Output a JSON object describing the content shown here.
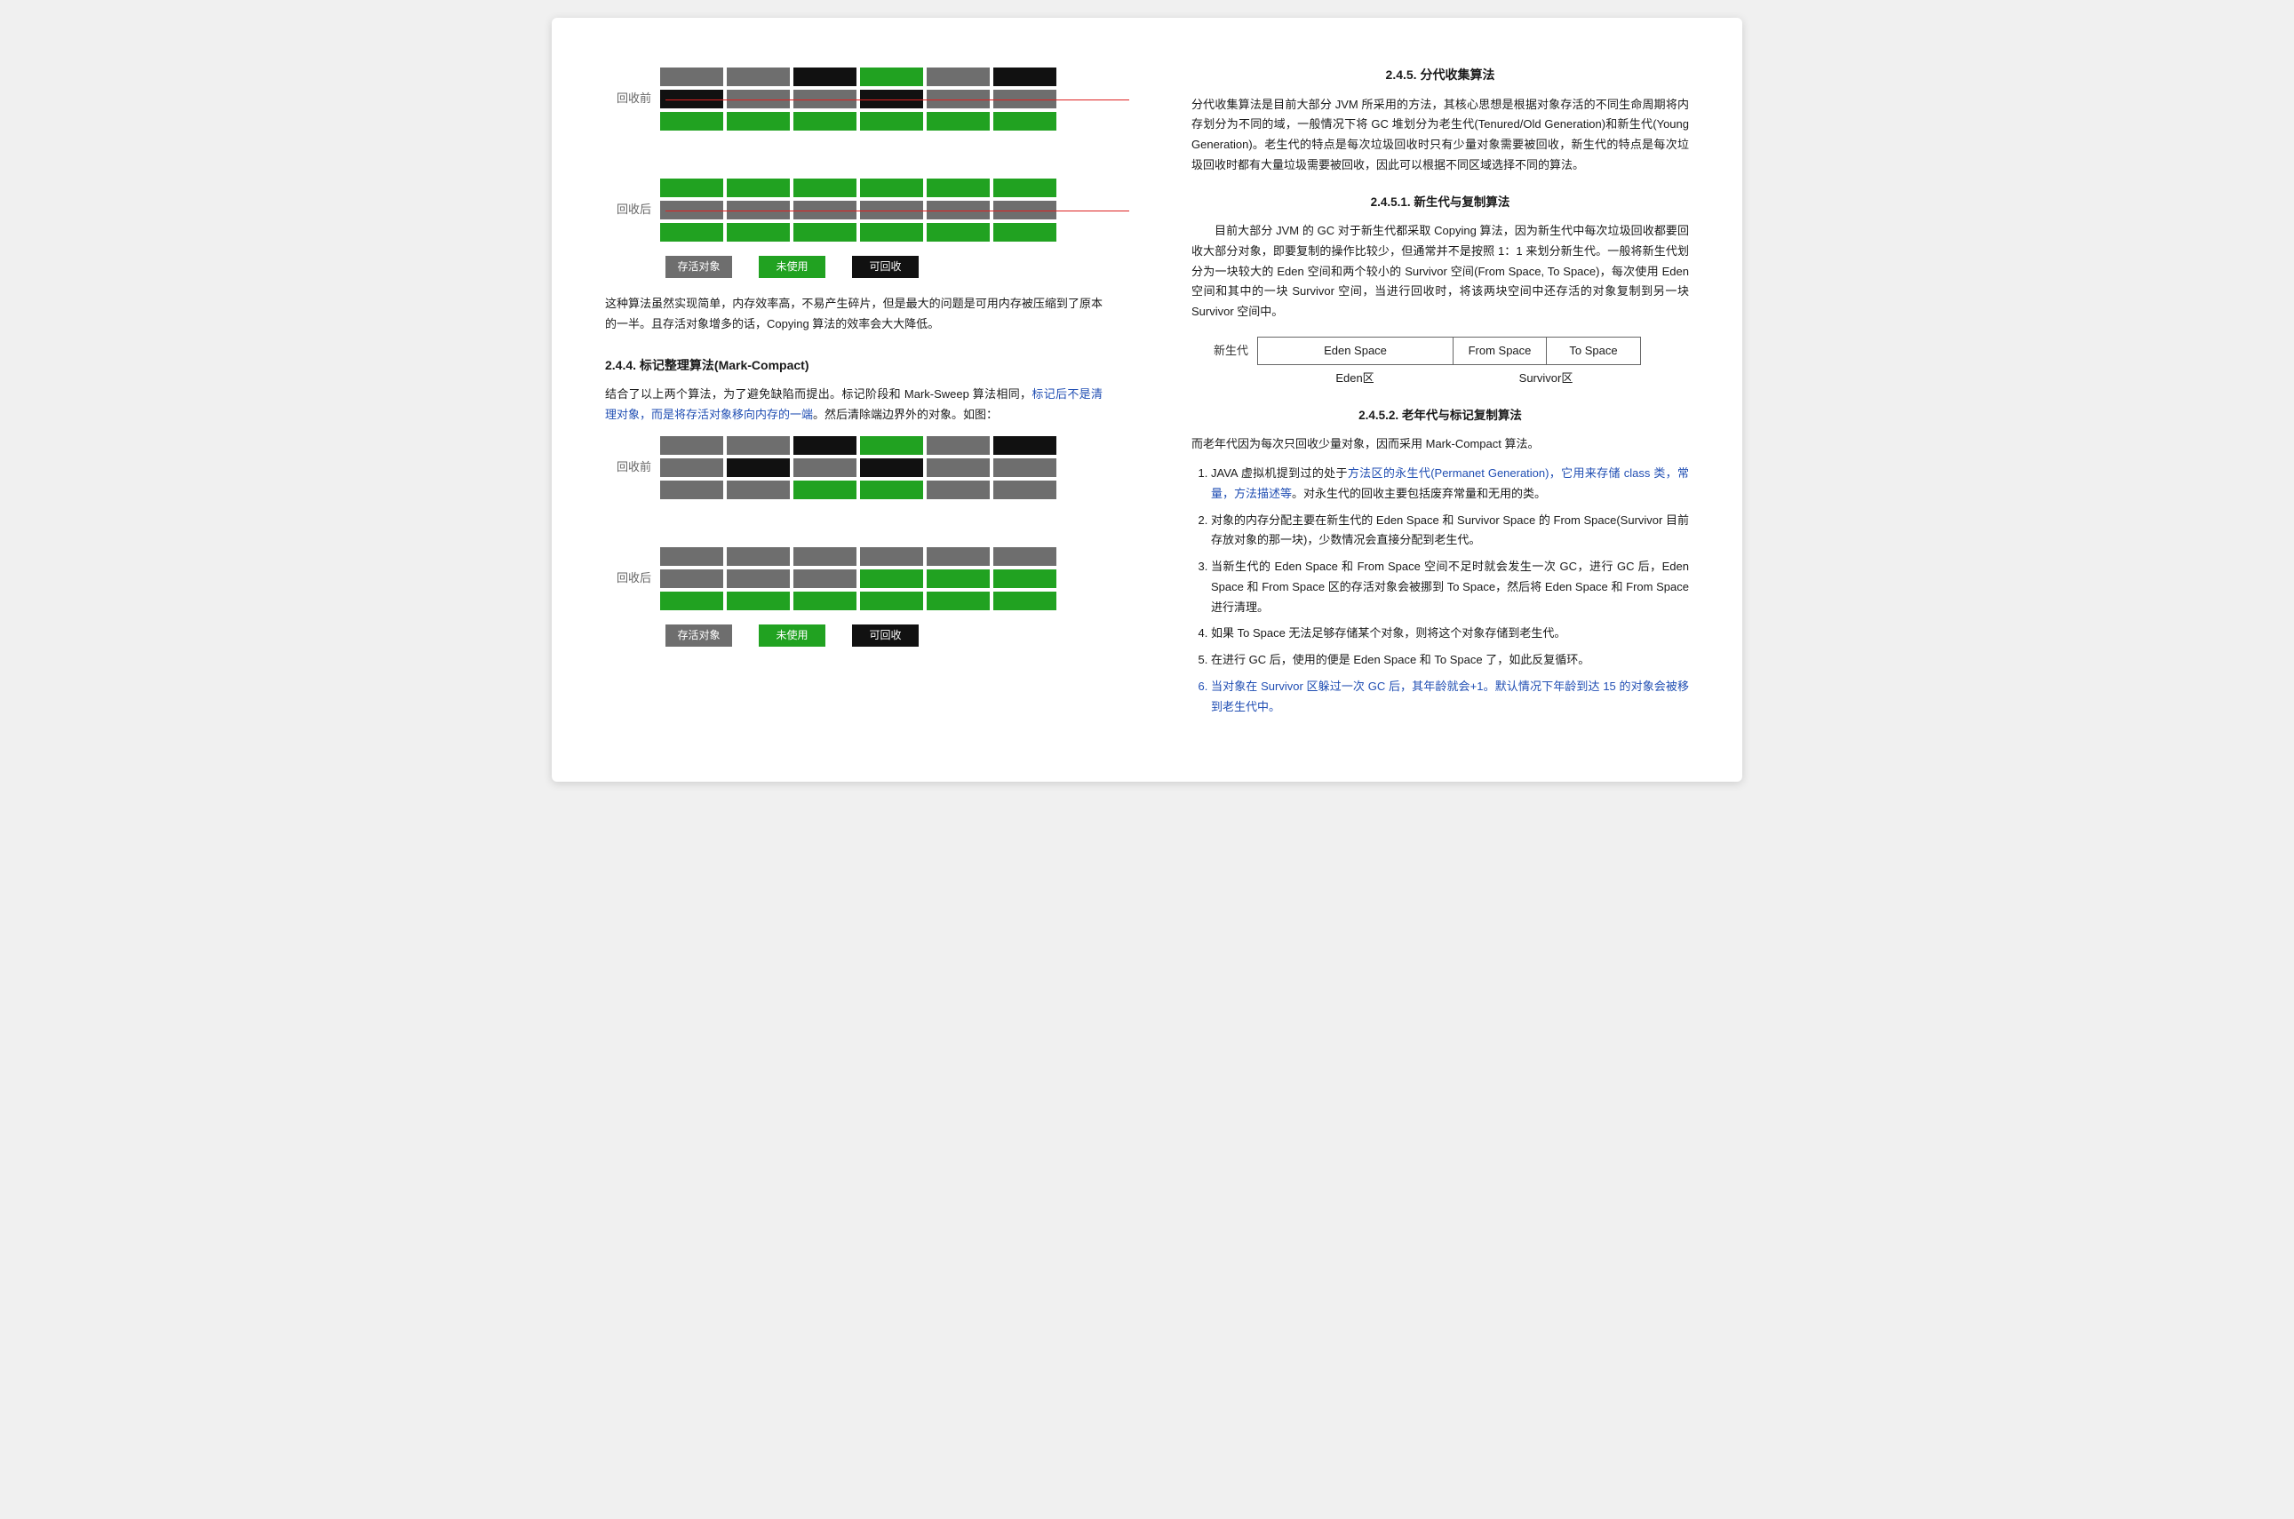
{
  "colors": {
    "grey": "#6e6e6e",
    "green": "#21a221",
    "black": "#111111",
    "link": "#204eb3",
    "redline": "#d22222",
    "page_bg": "#ffffff"
  },
  "left": {
    "diagram1": {
      "label_before": "回收前",
      "label_after": "回收后",
      "redline": true,
      "rows_before": [
        [
          "grey",
          "grey",
          "black",
          "green",
          "grey",
          "black"
        ],
        [
          "black",
          "grey",
          "grey",
          "black",
          "grey",
          "grey"
        ],
        [
          "green",
          "green",
          "green",
          "green",
          "green",
          "green"
        ]
      ],
      "rows_after": [
        [
          "green",
          "green",
          "green",
          "green",
          "green",
          "green"
        ],
        [
          "grey",
          "grey",
          "grey",
          "grey",
          "grey",
          "grey"
        ],
        [
          "green",
          "green",
          "green",
          "green",
          "green",
          "green"
        ]
      ],
      "legend": {
        "grey": "存活对象",
        "green": "未使用",
        "black": "可回收"
      }
    },
    "para1": "这种算法虽然实现简单，内存效率高，不易产生碎片，但是最大的问题是可用内存被压缩到了原本的一半。且存活对象增多的话，Copying 算法的效率会大大降低。",
    "heading_244": "2.4.4.  标记整理算法(Mark-Compact)",
    "para2_a": "结合了以上两个算法，为了避免缺陷而提出。标记阶段和 Mark-Sweep 算法相同，",
    "para2_b": "标记后不是清理对象，而是将存活对象移向内存的一端",
    "para2_c": "。然后清除端边界外的对象。如图：",
    "diagram2": {
      "label_before": "回收前",
      "label_after": "回收后",
      "redline": false,
      "rows_before": [
        [
          "grey",
          "grey",
          "black",
          "green",
          "grey",
          "black"
        ],
        [
          "grey",
          "black",
          "grey",
          "black",
          "grey",
          "grey"
        ],
        [
          "grey",
          "grey",
          "green",
          "green",
          "grey",
          "grey"
        ]
      ],
      "rows_after": [
        [
          "grey",
          "grey",
          "grey",
          "grey",
          "grey",
          "grey"
        ],
        [
          "grey",
          "grey",
          "grey",
          "green",
          "green",
          "green"
        ],
        [
          "green",
          "green",
          "green",
          "green",
          "green",
          "green"
        ]
      ],
      "legend": {
        "grey": "存活对象",
        "green": "未使用",
        "black": "可回收"
      }
    }
  },
  "right": {
    "heading_245": "2.4.5.  分代收集算法",
    "para_245": "分代收集算法是目前大部分 JVM 所采用的方法，其核心思想是根据对象存活的不同生命周期将内存划分为不同的域，一般情况下将 GC 堆划分为老生代(Tenured/Old Generation)和新生代(Young Generation)。老生代的特点是每次垃圾回收时只有少量对象需要被回收，新生代的特点是每次垃圾回收时都有大量垃圾需要被回收，因此可以根据不同区域选择不同的算法。",
    "heading_2451": "2.4.5.1.    新生代与复制算法",
    "para_2451": "目前大部分 JVM 的 GC 对于新生代都采取 Copying 算法，因为新生代中每次垃圾回收都要回收大部分对象，即要复制的操作比较少，但通常并不是按照 1：1 来划分新生代。一般将新生代划分为一块较大的 Eden 空间和两个较小的 Survivor 空间(From Space, To Space)，每次使用 Eden 空间和其中的一块 Survivor 空间，当进行回收时，将该两块空间中还存活的对象复制到另一块 Survivor 空间中。",
    "eden": {
      "side_label": "新生代",
      "eden": "Eden Space",
      "from": "From Space",
      "to": "To Space",
      "sub_eden": "Eden区",
      "sub_survivor": "Survivor区"
    },
    "heading_2452": "2.4.5.2.    老年代与标记复制算法",
    "para_2452": "而老年代因为每次只回收少量对象，因而采用 Mark-Compact 算法。",
    "list": [
      {
        "pre": "JAVA 虚拟机提到过的处于",
        "link": "方法区的永生代(Permanet Generation)，它用来存储 class 类，常量，方法描述等",
        "post": "。对永生代的回收主要包括废弃常量和无用的类。"
      },
      {
        "text": "对象的内存分配主要在新生代的 Eden Space 和 Survivor Space 的 From Space(Survivor 目前存放对象的那一块)，少数情况会直接分配到老生代。"
      },
      {
        "text": "当新生代的 Eden Space 和 From Space 空间不足时就会发生一次 GC，进行 GC 后，Eden Space 和 From Space 区的存活对象会被挪到 To Space，然后将 Eden Space 和 From Space 进行清理。"
      },
      {
        "text": "如果 To Space 无法足够存储某个对象，则将这个对象存储到老生代。"
      },
      {
        "text": "在进行 GC 后，使用的便是 Eden Space 和 To Space 了，如此反复循环。"
      },
      {
        "pre": "当对象在 Survivor 区躲过一次 GC 后，其年龄就会+1。",
        "link": "默认情况下年龄到达 15 的对象会被移到老生代中",
        "post": "。"
      }
    ]
  }
}
